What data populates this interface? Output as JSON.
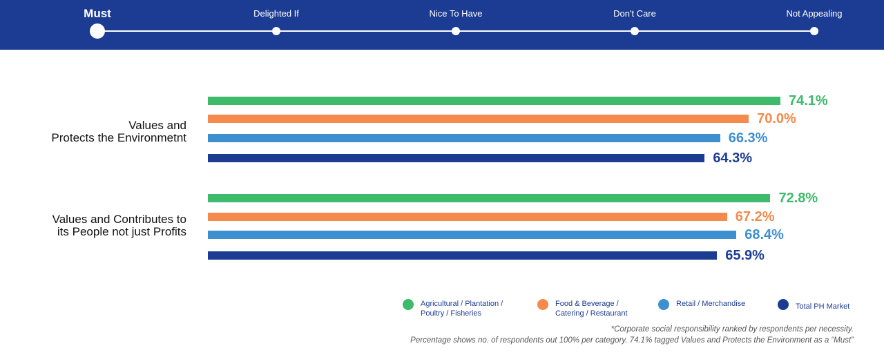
{
  "header": {
    "stages": [
      {
        "label": "Must",
        "active": true
      },
      {
        "label": "Delighted If"
      },
      {
        "label": "Nice To Have"
      },
      {
        "label": "Don't Care"
      },
      {
        "label": "Not Appealing"
      }
    ]
  },
  "chart_data": {
    "type": "bar",
    "orientation": "horizontal",
    "categories": [
      "Values and\nProtects the Environmetnt",
      "Values and Contributes to\nits People not just Profits"
    ],
    "series": [
      {
        "name": "Agricultural / Plantation / Poultry / Fisheries",
        "color": "#3dba6a",
        "values": [
          74.1,
          72.8
        ],
        "labels": [
          "74.1%",
          "72.8%"
        ]
      },
      {
        "name": "Food & Beverage / Catering / Restaurant",
        "color": "#f48a4c",
        "values": [
          70.0,
          67.2
        ],
        "labels": [
          "70.0%",
          "67.2%"
        ]
      },
      {
        "name": "Retail / Merchandise",
        "color": "#3d8fd0",
        "values": [
          66.3,
          68.4
        ],
        "labels": [
          "66.3%",
          "68.4%"
        ]
      },
      {
        "name": "Total PH Market",
        "color": "#1c3c93",
        "values": [
          64.3,
          65.9
        ],
        "labels": [
          "64.3%",
          "65.9%"
        ]
      }
    ],
    "xlim": [
      0,
      100
    ],
    "legend": "bottom-right"
  },
  "notes": [
    "*Corporate social responsibility ranked by respondents per necessity.",
    "Percentage shows no. of respondents out 100% per category. 74.1% tagged Values and Protects the Environment as a “Must”"
  ]
}
